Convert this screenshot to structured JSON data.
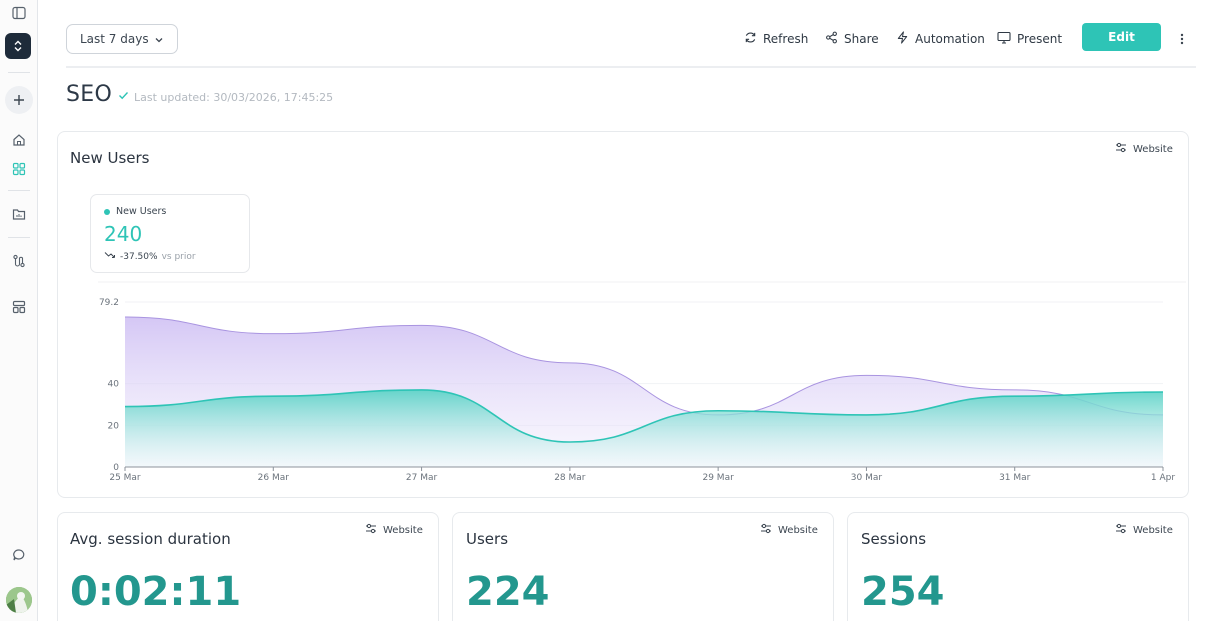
{
  "toolbar": {
    "date_range": "Last 7 days",
    "refresh_label": "Refresh",
    "share_label": "Share",
    "automation_label": "Automation",
    "present_label": "Present",
    "edit_label": "Edit"
  },
  "page": {
    "title": "SEO",
    "last_updated": "Last updated: 30/03/2026, 17:45:25"
  },
  "main_card": {
    "title": "New Users",
    "source_filter": "Website",
    "kpi": {
      "label": "New Users",
      "value": "240",
      "change": "-37.50%",
      "change_suffix": "vs prior"
    }
  },
  "chart_data": {
    "type": "area",
    "x": [
      "25 Mar",
      "26 Mar",
      "27 Mar",
      "28 Mar",
      "29 Mar",
      "30 Mar",
      "31 Mar",
      "1 Apr"
    ],
    "yticks": [
      "0",
      "20",
      "40",
      "79.2"
    ],
    "ylim": [
      0,
      79.2
    ],
    "series": [
      {
        "values": [
          72,
          64,
          68,
          50,
          25,
          44,
          37,
          25
        ],
        "color": "#b9a6ee"
      },
      {
        "values": [
          29,
          34,
          37,
          12,
          27,
          25,
          34,
          36
        ],
        "color": "#2ec4b6"
      }
    ],
    "grid": "horizontal",
    "legend": "none"
  },
  "metrics": [
    {
      "title": "Avg. session duration",
      "source_filter": "Website",
      "value": "0:02:11"
    },
    {
      "title": "Users",
      "source_filter": "Website",
      "value": "224"
    },
    {
      "title": "Sessions",
      "source_filter": "Website",
      "value": "254"
    }
  ],
  "colors": {
    "accent": "#2ec4b6",
    "metric_value": "#23978e",
    "secondary_series": "#b9a6ee"
  }
}
